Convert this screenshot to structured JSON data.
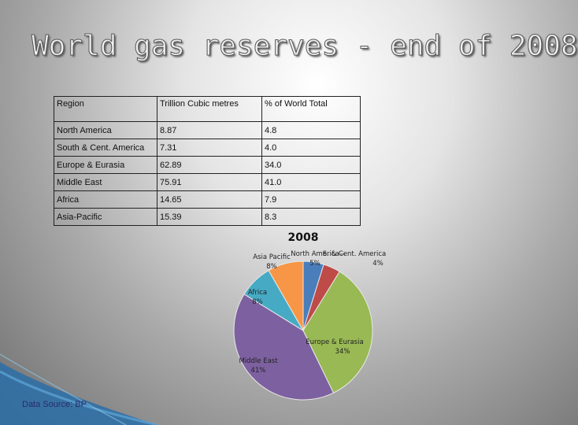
{
  "title": "World gas reserves - end of 2008",
  "table": {
    "headers": [
      "Region",
      "Trillion Cubic metres",
      "% of World Total"
    ],
    "rows": [
      [
        "North America",
        "8.87",
        "4.8"
      ],
      [
        "South & Cent. America",
        "7.31",
        "4.0"
      ],
      [
        "Europe & Eurasia",
        "62.89",
        "34.0"
      ],
      [
        "Middle East",
        "75.91",
        "41.0"
      ],
      [
        "Africa",
        "14.65",
        "7.9"
      ],
      [
        "Asia-Pacific",
        "15.39",
        "8.3"
      ]
    ]
  },
  "chart_data": {
    "type": "pie",
    "title": "2008",
    "slices": [
      {
        "label": "North America",
        "pct_label": "5%",
        "value": 4.8,
        "color": "#4a7ebb"
      },
      {
        "label": "S. & Cent. America",
        "pct_label": "4%",
        "value": 4.0,
        "color": "#be4b48"
      },
      {
        "label": "Europe & Eurasia",
        "pct_label": "34%",
        "value": 34.0,
        "color": "#98b954"
      },
      {
        "label": "Middle East",
        "pct_label": "41%",
        "value": 41.0,
        "color": "#7d60a0"
      },
      {
        "label": "Africa",
        "pct_label": "8%",
        "value": 7.9,
        "color": "#46aac5"
      },
      {
        "label": "Asia Pacific",
        "pct_label": "8%",
        "value": 8.3,
        "color": "#f79646"
      }
    ]
  },
  "source": "Data Source: BP"
}
